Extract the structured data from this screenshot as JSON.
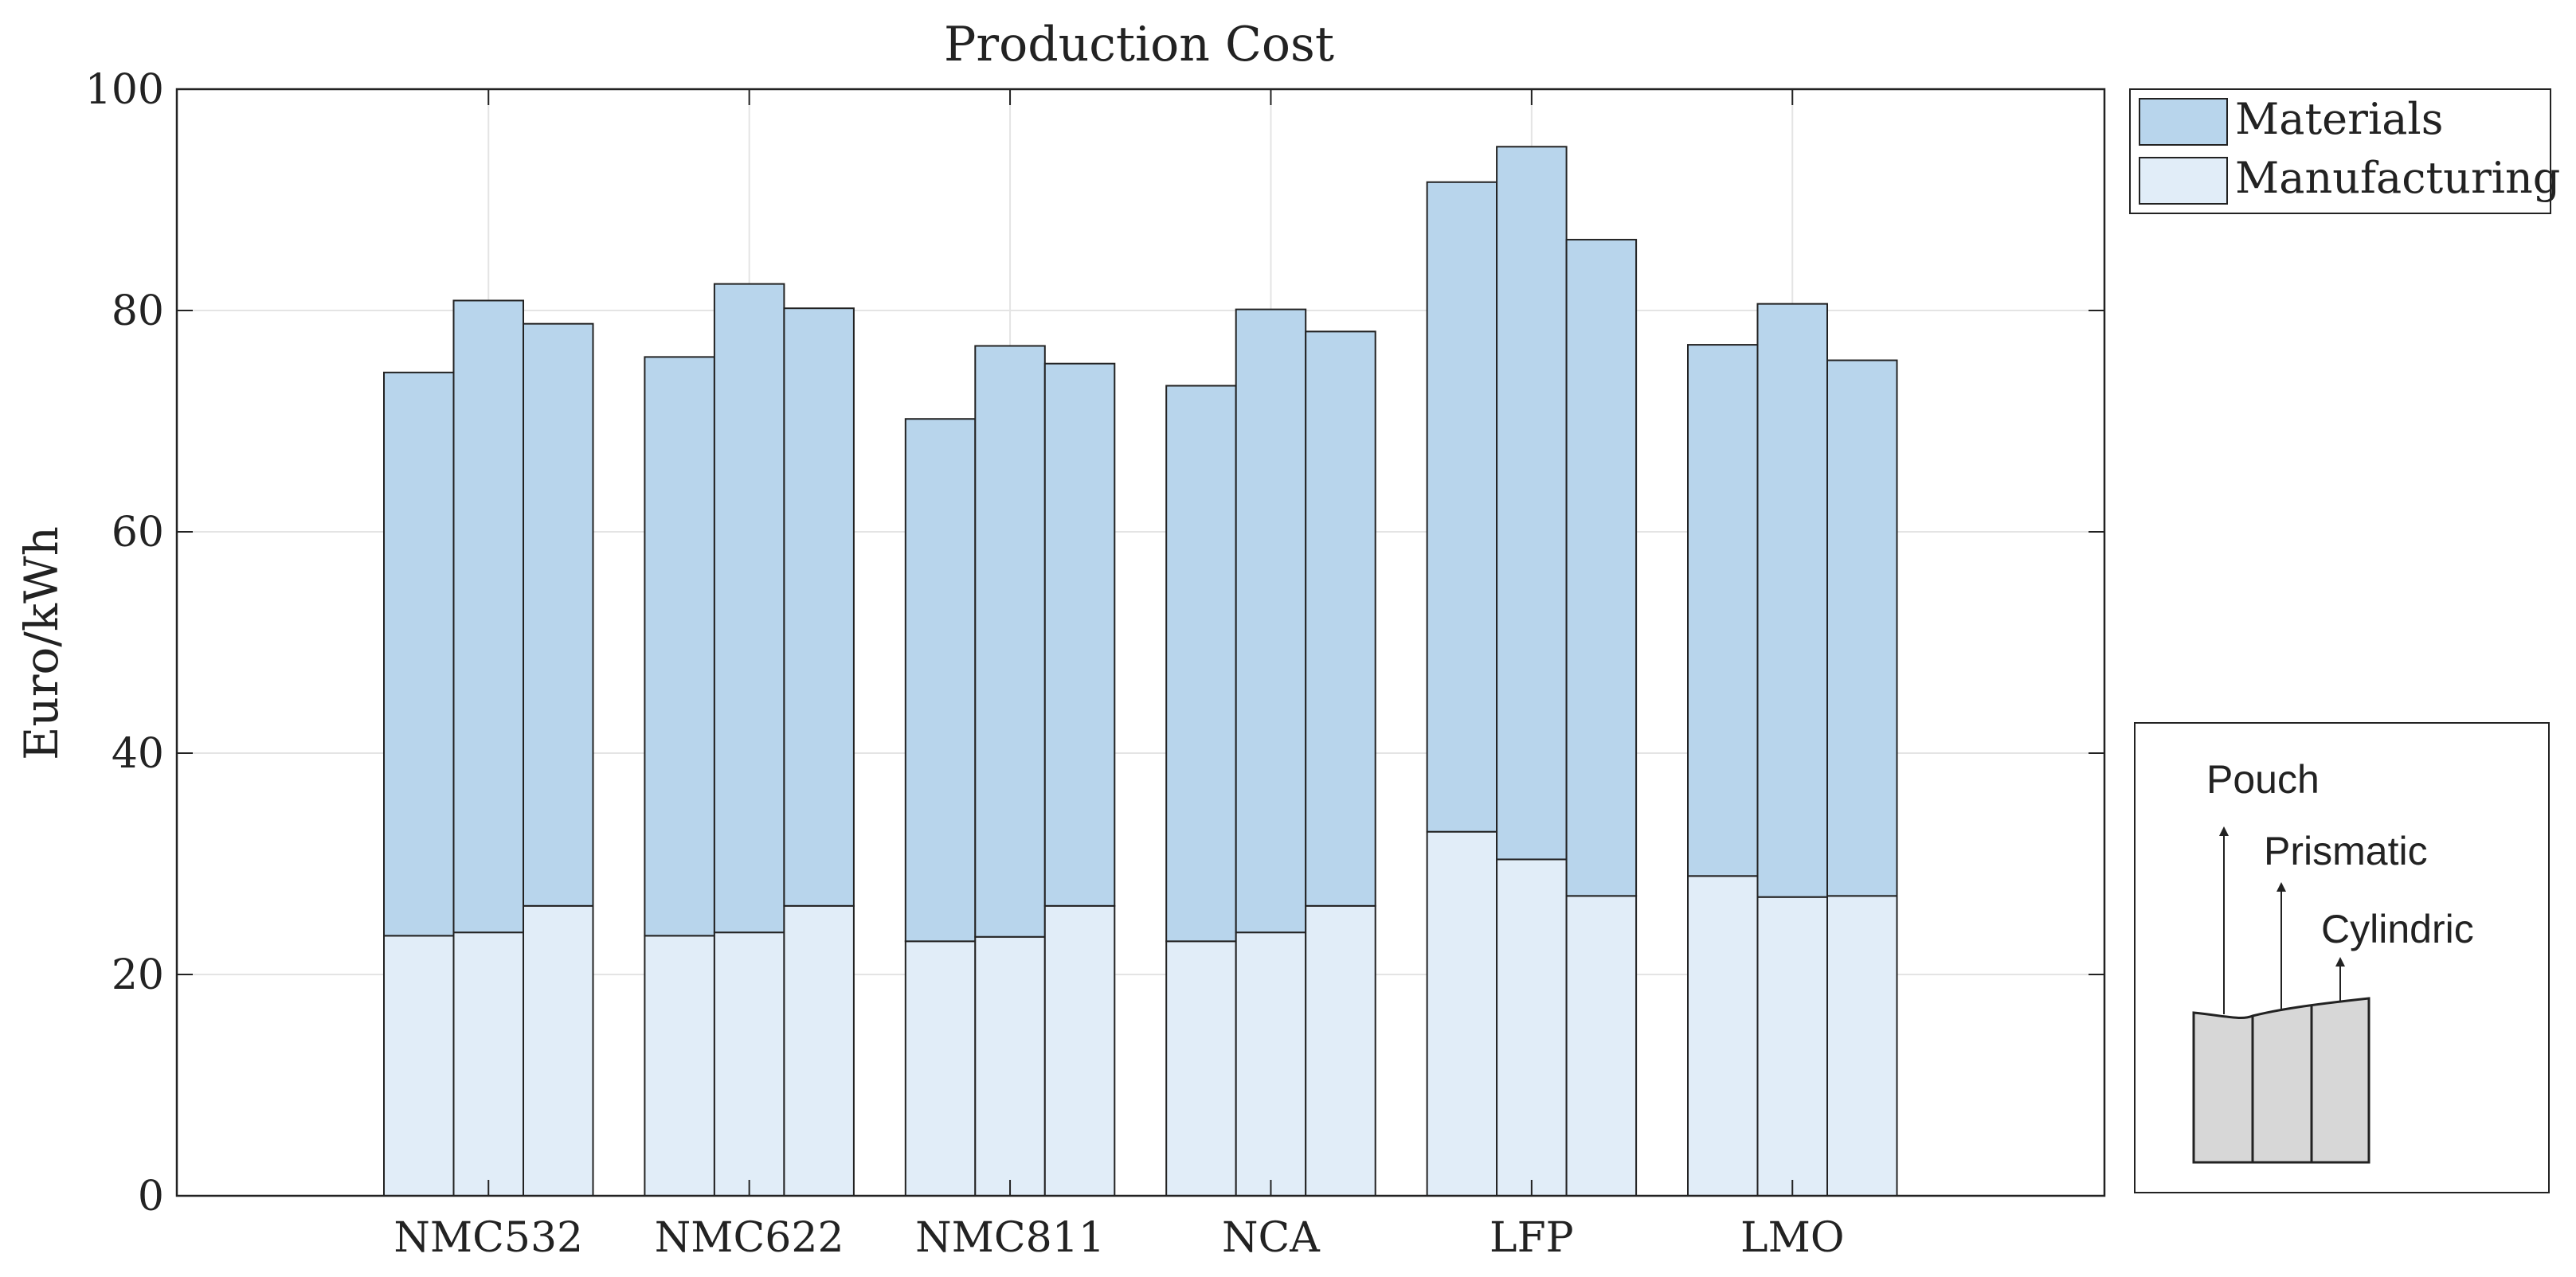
{
  "chart_data": {
    "type": "bar",
    "stacked": true,
    "title": "Production Cost",
    "xlabel": "",
    "ylabel": "Euro/kWh",
    "ylim": [
      0,
      100
    ],
    "yticks": [
      0,
      20,
      40,
      60,
      80,
      100
    ],
    "grid": true,
    "categories": [
      "NMC532",
      "NMC622",
      "NMC811",
      "NCA",
      "LFP",
      "LMO"
    ],
    "cell_formats": [
      "Pouch",
      "Prismatic",
      "Cylindric"
    ],
    "series": [
      {
        "name": "Manufacturing",
        "color": "#e1edf8",
        "values": [
          [
            23.5,
            23.8,
            26.2
          ],
          [
            23.5,
            23.8,
            26.2
          ],
          [
            23.0,
            23.4,
            26.2
          ],
          [
            23.0,
            23.8,
            26.2
          ],
          [
            32.9,
            30.4,
            27.1
          ],
          [
            28.9,
            27.0,
            27.1
          ]
        ]
      },
      {
        "name": "Materials",
        "color": "#b8d5ec",
        "values": [
          [
            50.9,
            57.1,
            52.6
          ],
          [
            52.3,
            58.6,
            54.0
          ],
          [
            47.2,
            53.4,
            49.0
          ],
          [
            50.2,
            56.3,
            51.9
          ],
          [
            58.7,
            64.4,
            59.3
          ],
          [
            48.0,
            53.6,
            48.4
          ]
        ]
      }
    ],
    "legend": {
      "position": "top-right, outside",
      "entries": [
        "Materials",
        "Manufacturing"
      ]
    },
    "inset": {
      "position": "bottom-right, outside",
      "labels": [
        "Pouch",
        "Prismatic",
        "Cylindric"
      ]
    }
  }
}
